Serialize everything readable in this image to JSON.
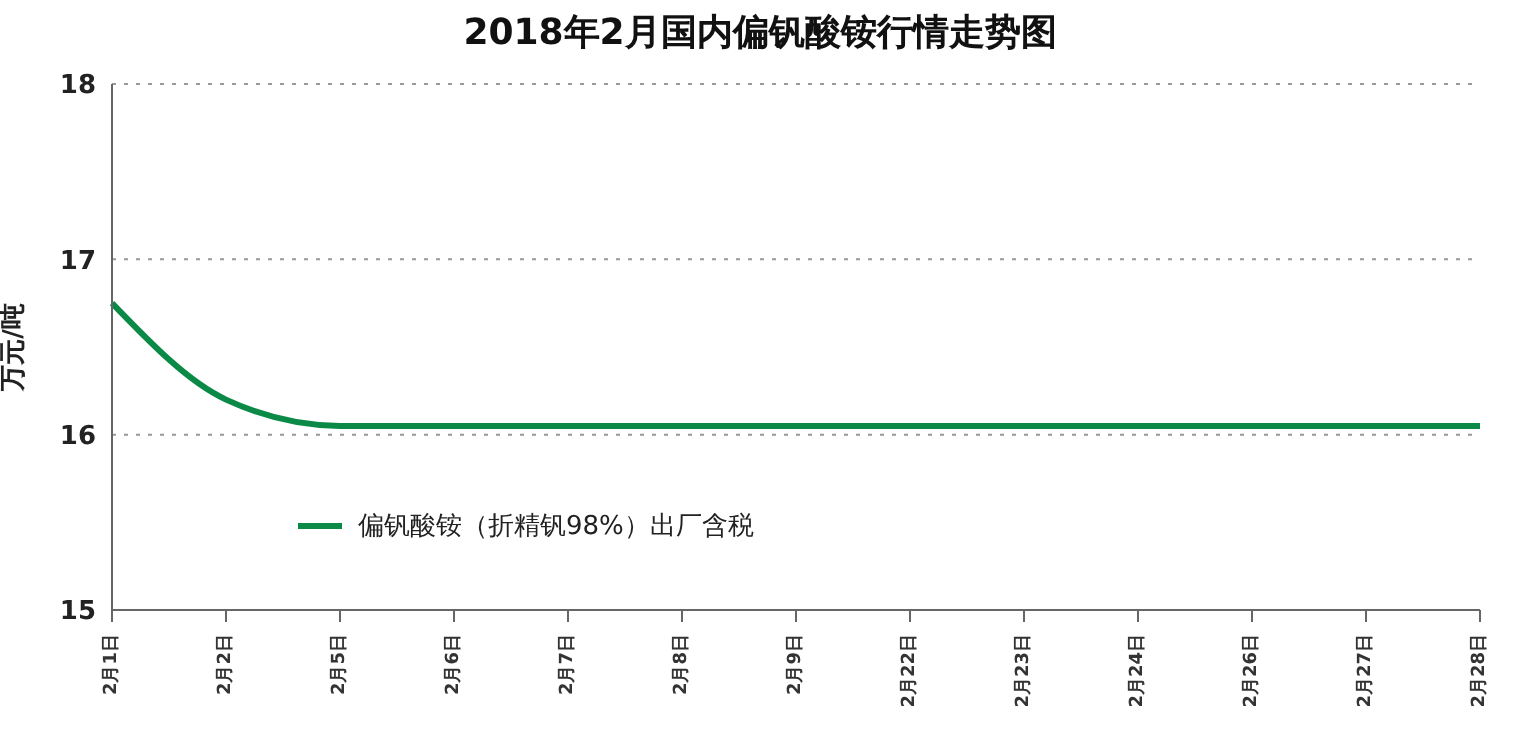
{
  "chart_data": {
    "type": "line",
    "title": "2018年2月国内偏钒酸铵行情走势图",
    "ylabel": "万元/吨",
    "categories": [
      "2月1日",
      "2月2日",
      "2月5日",
      "2月6日",
      "2月7日",
      "2月8日",
      "2月9日",
      "2月22日",
      "2月23日",
      "2月24日",
      "2月26日",
      "2月27日",
      "2月28日"
    ],
    "series": [
      {
        "name": "偏钒酸铵（折精钒98%）出厂含税",
        "color": "#0a8a46",
        "values": [
          16.75,
          16.2,
          16.05,
          16.05,
          16.05,
          16.05,
          16.05,
          16.05,
          16.05,
          16.05,
          16.05,
          16.05,
          16.05
        ]
      }
    ],
    "ylim": [
      15,
      18
    ],
    "yticks": [
      15,
      16,
      17,
      18
    ],
    "grid": "y",
    "legend": "bottom left",
    "marker": "none",
    "line_style": "solid"
  }
}
